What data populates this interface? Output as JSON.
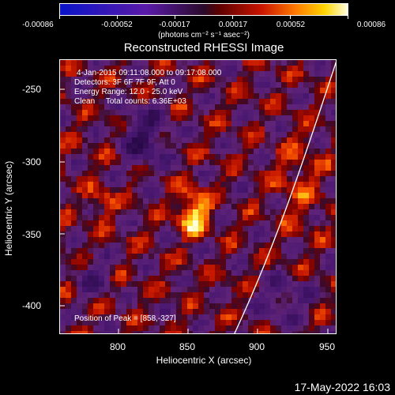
{
  "colorbar": {
    "tick_labels": [
      "-0.00086",
      "-0.00052",
      "-0.00017",
      "0.00017",
      "0.00052",
      "0.00086"
    ],
    "units": "(photons cm⁻² s⁻¹ asec⁻²)"
  },
  "plot": {
    "title": "Reconstructed RHESSI Image",
    "info_lines": [
      "4-Jan-2015 09:11:08.000 to 09:17:08.000",
      "Detectors: 3F 6F 7F 9F, Att 0",
      "Energy Range: 12.0 - 25.0 keV",
      "Clean     Total counts: 6.36E+03"
    ],
    "peak_label": "Position of Peak = [858,-327]",
    "x_axis_title": "Heliocentric X (arcsec)",
    "y_axis_title": "Heliocentric Y (arcsec)",
    "x_ticks": [
      "800",
      "850",
      "900",
      "950"
    ],
    "y_ticks": [
      "-250",
      "-300",
      "-350",
      "-400"
    ]
  },
  "footer": {
    "timestamp": "17-May-2022 16:03"
  }
}
